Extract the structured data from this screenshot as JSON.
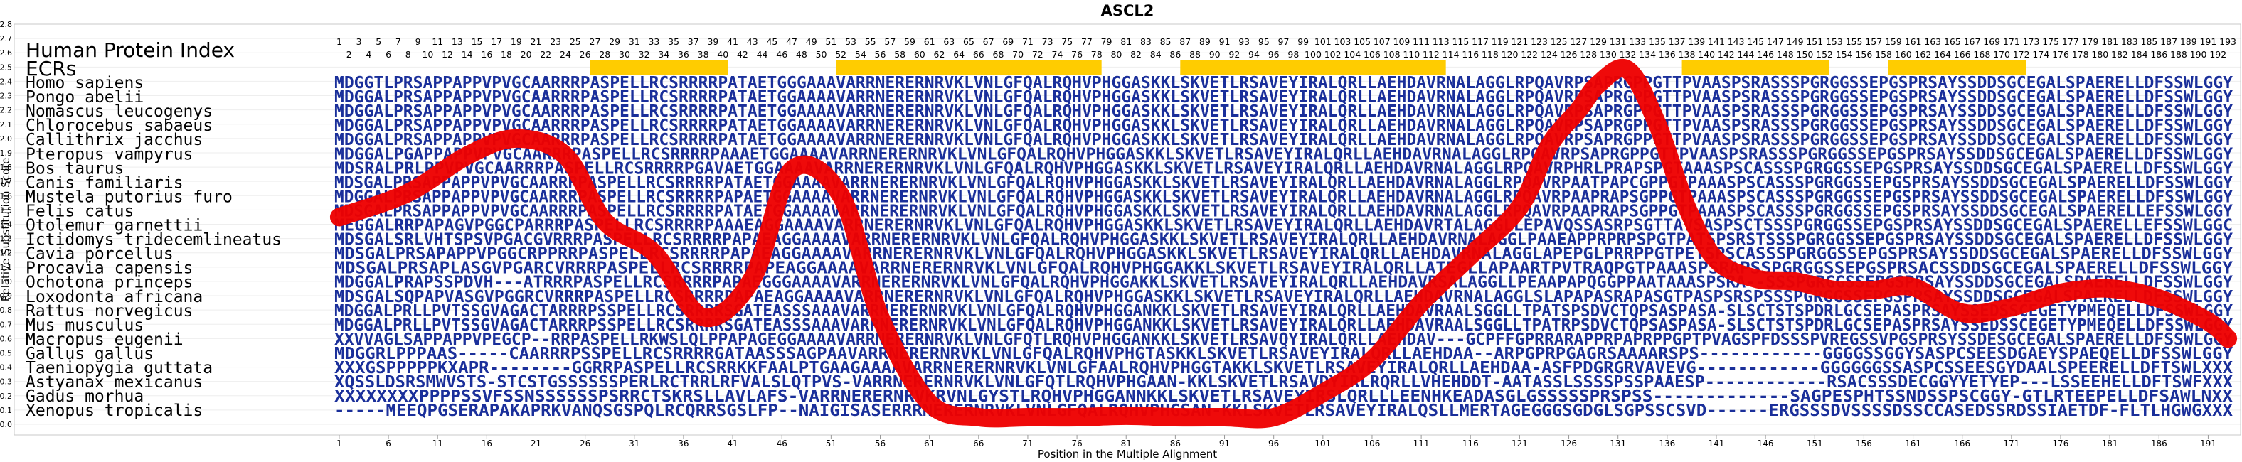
{
  "chart_data": {
    "type": "line",
    "title": "ASCL2",
    "xlabel": "Position in the Multiple Alignment",
    "ylabel": "Relative Substitution Score",
    "ylim": [
      0.0,
      2.8
    ],
    "xlim": [
      1,
      193
    ],
    "yticks": [
      "0.0",
      "0.1",
      "0.2",
      "0.3",
      "0.4",
      "0.5",
      "0.6",
      "0.7",
      "0.8",
      "0.9",
      "1.0",
      "1.1",
      "1.2",
      "1.3",
      "1.4",
      "1.5",
      "1.6",
      "1.7",
      "1.8",
      "1.9",
      "2.0",
      "2.1",
      "2.2",
      "2.3",
      "2.4",
      "2.5",
      "2.6",
      "2.7",
      "2.8"
    ],
    "xticks": [
      "1",
      "6",
      "11",
      "16",
      "21",
      "26",
      "31",
      "36",
      "41",
      "46",
      "51",
      "56",
      "61",
      "66",
      "71",
      "76",
      "81",
      "86",
      "91",
      "96",
      "101",
      "106",
      "111",
      "116",
      "121",
      "126",
      "131",
      "136",
      "141",
      "146",
      "151",
      "156",
      "161",
      "166",
      "171",
      "176",
      "181",
      "186",
      "191"
    ],
    "header_labels": {
      "hpi": "Human Protein Index",
      "ecrs": "ECRs"
    },
    "ecrs": [
      {
        "start": 27,
        "end": 40
      },
      {
        "start": 52,
        "end": 78
      },
      {
        "start": 87,
        "end": 113
      },
      {
        "start": 138,
        "end": 152
      },
      {
        "start": 159,
        "end": 172
      }
    ],
    "hpi_odd": [
      "1",
      "3",
      "5",
      "7",
      "9",
      "11",
      "13",
      "15",
      "17",
      "19",
      "21",
      "23",
      "25",
      "27",
      "29",
      "31",
      "33",
      "35",
      "37",
      "39",
      "41",
      "43",
      "45",
      "47",
      "49",
      "51",
      "53",
      "55",
      "57",
      "59",
      "61",
      "63",
      "65",
      "67",
      "69",
      "71",
      "73",
      "75",
      "77",
      "79",
      "81",
      "83",
      "85",
      "87",
      "89",
      "91",
      "93",
      "95",
      "97",
      "99",
      "101",
      "103",
      "105",
      "107",
      "109",
      "111",
      "113",
      "115",
      "117",
      "119",
      "121",
      "123",
      "125",
      "127",
      "129",
      "131",
      "133",
      "135",
      "137",
      "139",
      "141",
      "143",
      "145",
      "147",
      "149",
      "151",
      "153",
      "155",
      "157",
      "159",
      "161",
      "163",
      "165",
      "167",
      "169",
      "171",
      "173",
      "175",
      "177",
      "179",
      "181",
      "183",
      "185",
      "187",
      "189",
      "191",
      "193"
    ],
    "hpi_even": [
      "2",
      "4",
      "6",
      "8",
      "10",
      "12",
      "14",
      "16",
      "18",
      "20",
      "22",
      "24",
      "26",
      "28",
      "30",
      "32",
      "34",
      "36",
      "38",
      "40",
      "42",
      "44",
      "46",
      "48",
      "50",
      "52",
      "54",
      "56",
      "58",
      "60",
      "62",
      "64",
      "66",
      "68",
      "70",
      "72",
      "74",
      "76",
      "78",
      "80",
      "82",
      "84",
      "86",
      "88",
      "90",
      "92",
      "94",
      "96",
      "98",
      "100",
      "102",
      "104",
      "106",
      "108",
      "110",
      "112",
      "114",
      "116",
      "118",
      "120",
      "122",
      "124",
      "126",
      "128",
      "130",
      "132",
      "134",
      "136",
      "138",
      "140",
      "142",
      "144",
      "146",
      "148",
      "150",
      "152",
      "154",
      "156",
      "158",
      "160",
      "162",
      "164",
      "166",
      "168",
      "170",
      "172",
      "174",
      "176",
      "178",
      "180",
      "182",
      "184",
      "186",
      "188",
      "190",
      "192"
    ],
    "series": [
      {
        "color": "#ee0000",
        "x": [
          1,
          8,
          14,
          19,
          24,
          28,
          33,
          38,
          43,
          47,
          52,
          56,
          61,
          66,
          71,
          76,
          81,
          86,
          91,
          96,
          101,
          106,
          111,
          116,
          121,
          124,
          127,
          129,
          132,
          135,
          138,
          141,
          145,
          149,
          153,
          157,
          161,
          166,
          171,
          176,
          181,
          186,
          191,
          193
        ],
        "values": [
          1.45,
          1.62,
          1.88,
          2.0,
          1.88,
          1.42,
          1.2,
          0.75,
          1.02,
          1.78,
          1.6,
          0.75,
          0.15,
          0.05,
          0.05,
          0.05,
          0.06,
          0.05,
          0.05,
          0.05,
          0.22,
          0.45,
          0.85,
          1.18,
          1.52,
          1.95,
          2.2,
          2.38,
          2.48,
          2.1,
          1.52,
          1.15,
          1.02,
          1.0,
          0.94,
          0.94,
          0.96,
          0.78,
          0.82,
          0.92,
          0.95,
          0.88,
          0.72,
          0.6
        ]
      }
    ],
    "alignment": [
      {
        "species": "Homo sapiens",
        "seq": "MDGGTLPRSAPPAPPVPVGCAARRRPASPELLRCSRRRRPATAETGGGAAAVARRNERERNRVKLVNLGFQALRQHVPHGGASKKLSKVETLRSAVEYIRALQRLLAEHDAVRNALAGGLRPQAVRPSAPRGPPGTTPVAASPSRASSSPGRGGSSEPGSPRSAYSSDDSGCEGALSPAERELLDFSSWLGGY"
      },
      {
        "species": "Pongo abelii",
        "seq": "MDGGALPRSAPPAPPVPVGCAARRRPASPELLRCSRRRRPATAETGGAAAAVARRNERERNRVKLVNLGFQALRQHVPHGGASKKLSKVETLRSAVEYIRALQRLLAEHDAVRNALAGGLRPQAVRPSAPRGPPGTTPVAASPSRASSSPGRGGSSEPGSPRSAYSSDDSGCEGALSPAERELLDFSSWLGGY"
      },
      {
        "species": "Nomascus leucogenys",
        "seq": "MDGGALPRSAPPAPPVPVGCAARRRPASPELLRCSRRRRPATAETGGAAAAVARRNERERNRVKLVNLGFQALRQHVPHGGASKKLSKVETLRSAVEYIRALQRLLAEHDAVRNALAGGLRPQAVRPSAPRGPPGTTPVAASPSRASSSPGRGGSSEPGSPRSAYSSDDSGCEGALSPAERELLDFSSWLGGY"
      },
      {
        "species": "Chlorocebus sabaeus",
        "seq": "MDGGALPRSAPPAPPVPVGCAARRRPASPELLRCSRRRRPATAETGGAAAAVARRNERERNRVKLVNLGFQALRQHVPHGGASKKLSKVETLRSAVEYIRALQRLLAEHDAVRNALAGGLRPQAVRPSAPRGPPGTTPVAASPSRASSSPGRGGSSEPGSPRSAYSSDDSGCEGALSPAERELLDFSSWLGGY"
      },
      {
        "species": "Callithrix jacchus",
        "seq": "MDGGALPRSAPPAPPVPVGCAARRRPASPELLRCSRRRRPATAETGGAAAAVARRNERERNRVKLVNLGFQALRQHVPHGGASKKLSKVETLRSAVEYIRALQRLLAEHDAVRNALAGGLRPQAVRPSAPRGPPGTTPVAASPSRASSSPGRGGSSEPGSPRSAYSSDDSGCEGALSPAERELLDFSSWLGGY"
      },
      {
        "species": "Pteropus vampyrus",
        "seq": "MDGGALPGAPPAPPVPVGCAARRRPASPELLRCSRRRRPAAAETGGAAAAVARRNERERNRVKLVNLGFQALRQHVPHGGASKKLSKVETLRSAVEYIRALQRLLAEHDAVRNALAGGLRPQAVRPSAPRGPPGTTPVAASPSRASSSPGRGGSSEPGSPRSAYSSDDSGCEGALSPAERELLDFSSWLGGY"
      },
      {
        "species": "Bos taurus",
        "seq": "MDSRALPRLPPVPVGCAARRRPASPELLRCSRRRRPGAVAETGGAAAAVARRNERERNRVKLVNLGFQALRQHVPHGGASKKLSKVETLRSAVEYIRALQRLLAEHDAVRNALAGGLRPQAVRPHRLPRAPSPGTAAASPSCASSSPGRGGSSEPGSPRSAYSSDDSGCEGALSPAERELLDFSSWLGGY"
      },
      {
        "species": "Canis familiaris",
        "seq": "MDSGALPRSAPPAPPVPVGCAARRRPASPELLRCSRRRRPATAETGGAAAAVARRNERERNRVKLVNLGFQALRQHVPHGGASKKLSKVETLRSAVEYIRALQRLLAEHDAVRNALAGGLRPQAVRPAATPAPCGPPGTPAAASPSCASSSPGRGGSSEPGSPRSAYSSDDSGCEGALSPAERELLDFSSWLGGY"
      },
      {
        "species": "Mustela putorius furo",
        "seq": "MDGGALPRSAPPAPPVPVGCAARRRPASPELLRCSRRRRPAPAETGGAAAAVARRNERERNRVKLVNLGFQALRQHVPHGGASKKLSKVETLRSAVEYIRALQRLLAEHDAVRNALAGGLRPQAVRPAAPRAPSGPPGTPAAASPSCASSSPGRGGSSEPGSPRSAYSSDDSGCEGALSPAERELLDFSSWLGGY"
      },
      {
        "species": "Felis catus",
        "seq": "MDSGALPRSAPPAPPVPVGCAARRRPASPELLRCSRRRRPATAETGGAAAAVARRNERERNRVKLVNLGFQALRQHVPHGGASKKLSKVETLRSAVEYIRALQRLLAEHDAVRNALAGGLRPQAVRPAAPRAPSGPPGTPAAASPSCASSSPGRGGSSEPGSPRSAYSSDDSGCEGALSPAERELLEFSSWLGGY"
      },
      {
        "species": "Otolemur garnettii",
        "seq": "MEGGALRRPAPAGVPGGCPARRRPASPELLRCSRRRRPAAAEAGGAAAAVARRNERERNRVKLVNLGFQALRQHVPHGGASKKLSKVETLRSAVEYIRALQRLLAEHDAVRTALAGGLLEPAVQSSASRPSGTTAVSASPSCTSSSPGRGGSSEPGSPRSAYSSDDSGCEGALSPAERELLEFSSWLGGC"
      },
      {
        "species": "Ictidomys tridecemlineatus",
        "seq": "MDSGALSRLVHTSPSVPGACGVRRRPASPELLRCSRRRRPAPAEAGGAAAAVARRNERERNRVKLVNLGFQALRQHVPHGGASKKLSKVETLRSAVEYIRALQRLLAEHDAVRNALAGGLPAAEAPPRPRPSPGTPATSPSRSTSSSPGRGGSSEPGSPRSAYSSDDSGCEGALSPAERELLDFSSWLGGY"
      },
      {
        "species": "Cavia porcellus",
        "seq": "MDSGALPRSAPAPPVPGGCRPPRRPASPELLRCSRRRRPAPAEAGGAAAAVARRNERERNRVKLVNLGFQALRQHVPHGGASKKLSKVETLRSAVEYIRALQRLLAEHDAVRNALAGGLAPEPGLPRRPPGTPETSPSCASSSPGRGGSSEPGSPRSAYSSDDSGCEGALSPAERELLDFSSWLGGY"
      },
      {
        "species": "Procavia capensis",
        "seq": "MDSGALPRSAPLASGVPGARCVRRRPASPELLRCSRRRRPAPEAGGAAAAVARRNERERNRVKLVNLGFQALRQHVPHGGAKKLSKVETLRSAVEYIRALQRLLATEGLLAPAARTPVTRAQPGTPAAASPSRAPSSPGRGGSSEPGSPRSACSSDDSGCEGALSPAERELLDFSSWLGGY"
      },
      {
        "species": "Ochotona princeps",
        "seq": "MDGGALPRAPSSPDVH---ATRRRPASPELLRCSRRRRPAPAEGGGAAAAVARRNERERNRVKLVNLGFQALRQHVPHGGAKKLSKVETLRSAVEYIRALQRLLAEHDAVRSALAGGLLPEAAPAPQGGPPAATAAASPSRA--SSSPGRGGSSEPGSPRSAYSSDDSGCEGALSPAERELLDFSSWLGGY"
      },
      {
        "species": "Loxodonta africana",
        "seq": "MDSGALSQPAPVASGVPGGRCVRRRPASPELLRCSRRRRPAPAEAGGAAAAVARRNERERNRVKLVNLGFQALRQHVPHGGASKKLSKVETLRSAVEYIRALQRLLAEHDAVRNALAGGLSLAPAPASRAPASGTPASPSRSPSSSPGRGGSSEPGSPRSAYSSDDSGCEGALSPAERELLDFSSWLGGY"
      },
      {
        "species": "Rattus norvegicus",
        "seq": "MDGGALPRLLPVTSSGVAGACTARRRPSSPELLRCSRRRRSGATEASSSAAAVARRNERERNRVKLVNLGFQALRQHVPHGGANKKLSKVETLRSAVEYIRALQRLLAEHDAVRAALSGGLLTPATSPSDVCTQPSASPASA-SLSCTSTSPDRLGCSEPASPRSAYSSEDSSCEGETYPMEQELLDFSSWLGGY"
      },
      {
        "species": "Mus musculus",
        "seq": "MDGGALPRLLPVTSSGVAGACTARRRPSSPELLRCSRRRRSGATEASSSAAAVARRNERERNRVKLVNLGFQALRQHVPHGGANKKLSKVETLRSAVEYIRALQRLLAEHDAVRAALSGGLLTPATRPSDVCTQPSASPASA-SLSCTSTSPDRLGCSEPASPRSAYSSEDSSCEGETYPMEQELLDFSSWLGGY"
      },
      {
        "species": "Macropus eugenii",
        "seq": "XXVVAGLSAPPAPPVPEGCP--RRPASPELLRKWSLQLPPAPAGEGGAAAAVARRNERERNRVKLVNLGFQTLRQHVPHGGANKKLSKVETLRSAVQYIRALQRLLAEHDAV---GCPFFGPRRARAPPRPAPRPPGPTPVAGSPFDSSSPVREGSSVPGSPRSYSSDESGCEGALSPAERELLDFSSWLGGY"
      },
      {
        "species": "Gallus gallus",
        "seq": "MDGGRLPPPAAS-----CAARRRPSSPELLRCSRRRRGATAASSSAGPAAVARRNERERNRVKLVNLGFQALRQHVPHGTASKKLSKVETLRSAVEYIRALQRLLAEHDAA--ARPGPRPGAGRSAAAARSPS------------GGGGSSGGYSASPCSEESDGAEYSPAEQELLDFSSWLGGY"
      },
      {
        "species": "Taeniopygia guttata",
        "seq": "XXXGSPPPPPKXAPR--------GGRRPASPELLRCSRRKKFAALPTGAAGAAAAVARRNERERNRVKLVNLGFAALRQHVPHGGTAKKLSKVETLRSAVEYIRALQRLLAEHDAA-ASFPDGRGRVAVEVG------------GGGGGGSSASPCSSEESGYDAALSPEERELLDFTSWLXXX"
      },
      {
        "species": "Astyanax mexicanus",
        "seq": "XQSSLDSRSMWVSTS-STCSTGSSSSSSPERLRCTRRLRFVALSLQTPVS-VARRNERERNRVKLVNLGFQTLRQHVPHGAAN-KKLSKVETLRSAVDYIRLRQRLLVHEHDDT-AATASSLSSSSPSSPAAESP------------RSACSSSDECGGYYETYEP---LSSEEHELLDFTSWFXXX"
      },
      {
        "species": "Gadus morhua",
        "seq": "XXXXXXXXPPPPSSVFSSNSSSSSSPSRRCTSKRSLLAVLAFS-VARRNERERNRVKRVNLGYSTLRQHVPHGGANNKKLSKVETLRSAVEYIRSLQRLLLEENHKEADASGLGSSSSSPRSPSS-------------SAGPESPHTSSNDSSPSCGGY-GTLRTEEPELLDFSAWLNXX"
      },
      {
        "species": "Xenopus tropicalis",
        "seq": "-----MEEQPGSERAPAKAPRKVANQSGSPQLRCQRRSGSLFP--NAIGISASERRRNERERNRVKLVNLGFQALRQHVPHGSAN-KKLSKVETLRSAVEYIRALQSLLMERTAGEGGGSGDGLSGPSSCSVD------ERGSSSDVSSSSDSSCCASEDSSRDSSIAETDF-FLTLHGWGXXX"
      }
    ]
  }
}
